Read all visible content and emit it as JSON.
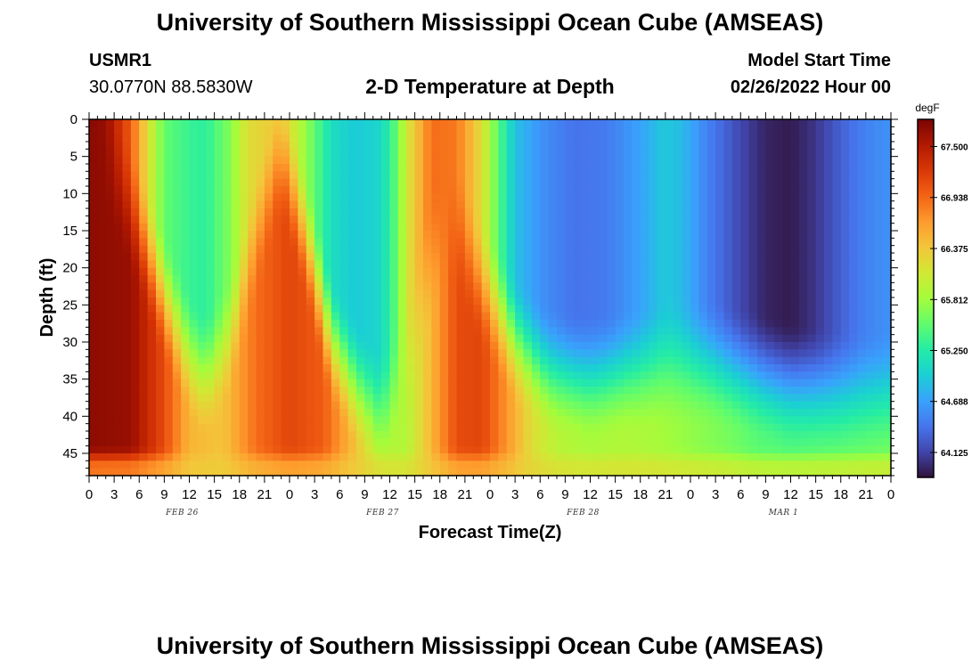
{
  "header": {
    "title": "University of Southern Mississippi Ocean Cube (AMSEAS)",
    "station_id": "USMR1",
    "coordinates": "30.0770N  88.5830W",
    "plot_title": "2-D Temperature at Depth",
    "model_start_label": "Model Start Time",
    "model_start_value": "02/26/2022 Hour 00"
  },
  "footer": {
    "title": "University of Southern Mississippi Ocean Cube (AMSEAS)"
  },
  "colors": {
    "colormap": [
      "#30123b",
      "#4145ab",
      "#4675ed",
      "#39a2fc",
      "#1bcfd4",
      "#24eca6",
      "#61fc6c",
      "#a4fc3b",
      "#d1e834",
      "#f3c63a",
      "#fe9b2d",
      "#f36315",
      "#d93806",
      "#b11901",
      "#7a0403"
    ]
  },
  "chart_data": {
    "type": "heatmap",
    "title": "2-D Temperature at Depth",
    "xlabel": "Forecast Time(Z)",
    "ylabel": "Depth (ft)",
    "colorbar_label": "degF",
    "x_tick_labels": [
      "0",
      "3",
      "6",
      "9",
      "12",
      "15",
      "18",
      "21",
      "0",
      "3",
      "6",
      "9",
      "12",
      "15",
      "18",
      "21",
      "0",
      "3",
      "6",
      "9",
      "12",
      "15",
      "18",
      "21",
      "0",
      "3",
      "6",
      "9",
      "12",
      "15",
      "18",
      "21",
      "0"
    ],
    "x_range_hours": [
      0,
      96
    ],
    "date_labels": [
      {
        "label": "FEB 26",
        "hour": 12
      },
      {
        "label": "FEB 27",
        "hour": 36
      },
      {
        "label": "FEB 28",
        "hour": 60
      },
      {
        "label": "MAR 1",
        "hour": 84
      }
    ],
    "y_ticks": [
      0,
      5,
      10,
      15,
      20,
      25,
      30,
      35,
      40,
      45
    ],
    "y_range_ft": [
      0,
      48
    ],
    "colorbar_ticks": [
      "67.500",
      "66.938",
      "66.375",
      "65.812",
      "65.250",
      "64.688",
      "64.125"
    ],
    "color_range_degF": [
      63.85,
      67.8
    ],
    "surface_temperature_degF": [
      {
        "hour": 0,
        "value": 67.75
      },
      {
        "hour": 2,
        "value": 67.65
      },
      {
        "hour": 5,
        "value": 67.0
      },
      {
        "hour": 7,
        "value": 66.2
      },
      {
        "hour": 9,
        "value": 65.55
      },
      {
        "hour": 12,
        "value": 65.35
      },
      {
        "hour": 14,
        "value": 65.3
      },
      {
        "hour": 17,
        "value": 65.7
      },
      {
        "hour": 19,
        "value": 66.2
      },
      {
        "hour": 22,
        "value": 66.35
      },
      {
        "hour": 24,
        "value": 66.2
      },
      {
        "hour": 26,
        "value": 65.75
      },
      {
        "hour": 29,
        "value": 65.1
      },
      {
        "hour": 32,
        "value": 64.95
      },
      {
        "hour": 35,
        "value": 65.05
      },
      {
        "hour": 37,
        "value": 65.6
      },
      {
        "hour": 38,
        "value": 66.1
      },
      {
        "hour": 41,
        "value": 66.9
      },
      {
        "hour": 44,
        "value": 66.85
      },
      {
        "hour": 47,
        "value": 66.2
      },
      {
        "hour": 49,
        "value": 65.5
      },
      {
        "hour": 51,
        "value": 64.9
      },
      {
        "hour": 54,
        "value": 64.6
      },
      {
        "hour": 58,
        "value": 64.4
      },
      {
        "hour": 62,
        "value": 64.45
      },
      {
        "hour": 66,
        "value": 64.7
      },
      {
        "hour": 69,
        "value": 64.95
      },
      {
        "hour": 71,
        "value": 64.85
      },
      {
        "hour": 74,
        "value": 64.5
      },
      {
        "hour": 78,
        "value": 64.15
      },
      {
        "hour": 81,
        "value": 63.95
      },
      {
        "hour": 84,
        "value": 63.9
      },
      {
        "hour": 87,
        "value": 64.05
      },
      {
        "hour": 90,
        "value": 64.3
      },
      {
        "hour": 93,
        "value": 64.5
      },
      {
        "hour": 96,
        "value": 64.6
      }
    ],
    "deep_temperature_degF": [
      {
        "hour": 0,
        "value": 67.7
      },
      {
        "hour": 5,
        "value": 67.65
      },
      {
        "hour": 9,
        "value": 67.1
      },
      {
        "hour": 12,
        "value": 66.5
      },
      {
        "hour": 16,
        "value": 66.4
      },
      {
        "hour": 20,
        "value": 66.9
      },
      {
        "hour": 24,
        "value": 67.15
      },
      {
        "hour": 28,
        "value": 67.0
      },
      {
        "hour": 32,
        "value": 66.4
      },
      {
        "hour": 35,
        "value": 65.95
      },
      {
        "hour": 38,
        "value": 65.9
      },
      {
        "hour": 41,
        "value": 66.5
      },
      {
        "hour": 44,
        "value": 67.1
      },
      {
        "hour": 47,
        "value": 67.15
      },
      {
        "hour": 50,
        "value": 66.7
      },
      {
        "hour": 53,
        "value": 66.2
      },
      {
        "hour": 56,
        "value": 65.95
      },
      {
        "hour": 60,
        "value": 65.85
      },
      {
        "hour": 64,
        "value": 65.9
      },
      {
        "hour": 68,
        "value": 65.85
      },
      {
        "hour": 72,
        "value": 65.75
      },
      {
        "hour": 76,
        "value": 65.65
      },
      {
        "hour": 80,
        "value": 65.5
      },
      {
        "hour": 84,
        "value": 65.45
      },
      {
        "hour": 88,
        "value": 65.5
      },
      {
        "hour": 92,
        "value": 65.55
      },
      {
        "hour": 96,
        "value": 65.6
      }
    ],
    "thermocline_depth_ft": [
      {
        "hour": 0,
        "value": 0
      },
      {
        "hour": 5,
        "value": 12
      },
      {
        "hour": 9,
        "value": 24
      },
      {
        "hour": 12,
        "value": 32
      },
      {
        "hour": 14,
        "value": 35
      },
      {
        "hour": 17,
        "value": 29
      },
      {
        "hour": 20,
        "value": 15
      },
      {
        "hour": 23,
        "value": 4
      },
      {
        "hour": 26,
        "value": 16
      },
      {
        "hour": 29,
        "value": 30
      },
      {
        "hour": 32,
        "value": 36
      },
      {
        "hour": 35,
        "value": 40
      },
      {
        "hour": 38,
        "value": 34
      },
      {
        "hour": 41,
        "value": 18
      },
      {
        "hour": 44,
        "value": 14
      },
      {
        "hour": 47,
        "value": 22
      },
      {
        "hour": 51,
        "value": 30
      },
      {
        "hour": 55,
        "value": 34
      },
      {
        "hour": 60,
        "value": 35
      },
      {
        "hour": 65,
        "value": 34
      },
      {
        "hour": 70,
        "value": 33
      },
      {
        "hour": 74,
        "value": 33
      },
      {
        "hour": 78,
        "value": 34
      },
      {
        "hour": 84,
        "value": 36
      },
      {
        "hour": 90,
        "value": 37
      },
      {
        "hour": 96,
        "value": 37
      }
    ],
    "bottom_layer": {
      "depth_ft": 44,
      "value_degF": 66.3
    }
  }
}
